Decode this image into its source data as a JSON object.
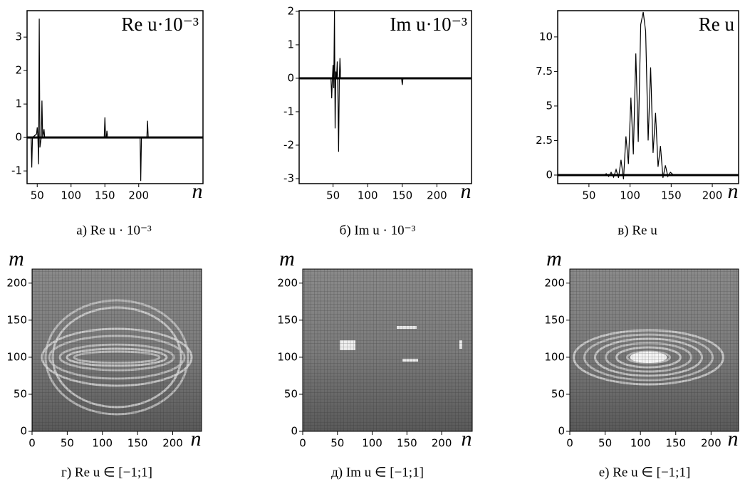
{
  "chart_data": [
    {
      "type": "line",
      "annotation": "Re u·10⁻³",
      "caption": "а) Re u · 10⁻³",
      "x_label": "n",
      "color": "#000000",
      "x": [
        35,
        41,
        42,
        43,
        49,
        50,
        51,
        52,
        53,
        54,
        56,
        57,
        58,
        59,
        60,
        61,
        149,
        150,
        151,
        152,
        153,
        154,
        202,
        203,
        204,
        212,
        213,
        214,
        295
      ],
      "values": [
        0,
        0,
        -0.9,
        0,
        0.1,
        0.3,
        0,
        -0.8,
        3.55,
        -0.3,
        0,
        1.1,
        0,
        0.1,
        0.25,
        0,
        0,
        0.6,
        0,
        0,
        0.2,
        0,
        0,
        -1.3,
        0,
        0,
        0.5,
        0,
        0
      ],
      "xlim": [
        35,
        295
      ],
      "ylim": [
        -1.38,
        3.79
      ],
      "xticks": [
        50,
        100,
        150,
        200
      ],
      "yticks": [
        -1,
        0,
        1,
        2,
        3
      ]
    },
    {
      "type": "line",
      "annotation": "Im u·10⁻³",
      "caption": "б) Im u · 10⁻³",
      "x_label": "n",
      "color": "#000000",
      "x": [
        1,
        47,
        48,
        49,
        50,
        51,
        52,
        53,
        54,
        55,
        56,
        57,
        58,
        59,
        60,
        61,
        149,
        150,
        151,
        250
      ],
      "values": [
        0,
        0,
        -0.6,
        0,
        0.4,
        -0.3,
        2.02,
        -1.5,
        0.2,
        0,
        0.5,
        -0.4,
        -2.2,
        0,
        0.6,
        0,
        0,
        -0.2,
        0,
        0
      ],
      "xlim": [
        1,
        250
      ],
      "ylim": [
        -3.15,
        2.02
      ],
      "xticks": [
        50,
        100,
        150,
        200
      ],
      "yticks": [
        -3,
        -2,
        -1,
        0,
        1,
        2
      ]
    },
    {
      "type": "line",
      "annotation": "Re u",
      "caption": "в) Re u",
      "x_label": "n",
      "color": "#000000",
      "x": [
        12,
        62,
        65,
        68,
        71,
        74,
        77,
        80,
        83,
        86,
        89,
        92,
        95,
        98,
        101,
        104,
        107,
        110,
        113,
        116,
        119,
        122,
        125,
        128,
        131,
        134,
        137,
        140,
        143,
        146,
        149,
        152,
        155,
        158,
        232
      ],
      "values": [
        0,
        0,
        0,
        -0.05,
        0.1,
        -0.1,
        0.2,
        -0.15,
        0.4,
        -0.2,
        1.1,
        -0.3,
        2.8,
        0.8,
        5.6,
        1.5,
        8.8,
        2.4,
        10.9,
        11.8,
        10.4,
        2.5,
        7.8,
        1.6,
        4.5,
        0.6,
        2.1,
        -0.2,
        0.7,
        -0.1,
        0.2,
        0.05,
        0.04,
        0,
        0
      ],
      "xlim": [
        12,
        232
      ],
      "ylim": [
        -0.62,
        11.9
      ],
      "xticks": [
        50,
        100,
        150,
        200
      ],
      "yticks": [
        0,
        2.5,
        5,
        7.5,
        10
      ]
    },
    {
      "type": "heatmap",
      "caption": "г) Re u ∈ [−1;1]",
      "x_label": "n",
      "y_label": "m",
      "xlim": [
        0,
        241
      ],
      "ylim": [
        0,
        219
      ],
      "xticks": [
        0,
        50,
        100,
        150,
        200
      ],
      "yticks": [
        0,
        50,
        100,
        150,
        200
      ]
    },
    {
      "type": "heatmap",
      "caption": "д) Im u ∈ [−1;1]",
      "x_label": "n",
      "y_label": "m",
      "xlim": [
        0,
        244
      ],
      "ylim": [
        0,
        219
      ],
      "xticks": [
        0,
        50,
        100,
        150,
        200
      ],
      "yticks": [
        0,
        50,
        100,
        150,
        200
      ]
    },
    {
      "type": "heatmap",
      "caption": "е) Re u ∈ [−1;1]",
      "x_label": "n",
      "y_label": "m",
      "xlim": [
        0,
        239
      ],
      "ylim": [
        0,
        219
      ],
      "xticks": [
        0,
        50,
        100,
        150,
        200
      ],
      "yticks": [
        0,
        50,
        100,
        150,
        200
      ]
    }
  ]
}
